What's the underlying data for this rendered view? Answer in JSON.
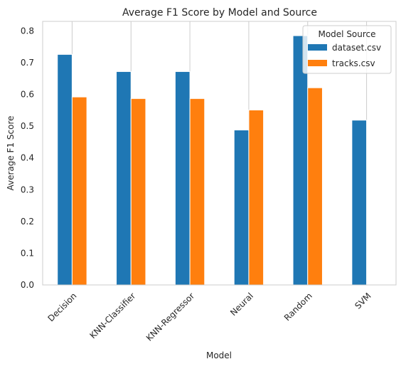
{
  "chart_data": {
    "type": "bar",
    "title": "Average F1 Score by Model and Source",
    "xlabel": "Model",
    "ylabel": "Average F1 Score",
    "categories": [
      "Decision",
      "KNN-Classifier",
      "KNN-Regressor",
      "Neural",
      "Random",
      "SVM"
    ],
    "series": [
      {
        "name": "dataset.csv",
        "color": "#1f77b4",
        "values": [
          0.726,
          0.672,
          0.672,
          0.488,
          0.785,
          0.519
        ]
      },
      {
        "name": "tracks.csv",
        "color": "#ff7f0e",
        "values": [
          0.592,
          0.587,
          0.587,
          0.551,
          0.621,
          null
        ]
      }
    ],
    "ylim": [
      0,
      0.83
    ],
    "yticks": [
      0.0,
      0.1,
      0.2,
      0.3,
      0.4,
      0.5,
      0.6,
      0.7,
      0.8
    ],
    "ytick_labels": [
      "0.0",
      "0.1",
      "0.2",
      "0.3",
      "0.4",
      "0.5",
      "0.6",
      "0.7",
      "0.8"
    ],
    "grid": true,
    "legend": {
      "title": "Model Source",
      "placement": "top-right"
    }
  }
}
